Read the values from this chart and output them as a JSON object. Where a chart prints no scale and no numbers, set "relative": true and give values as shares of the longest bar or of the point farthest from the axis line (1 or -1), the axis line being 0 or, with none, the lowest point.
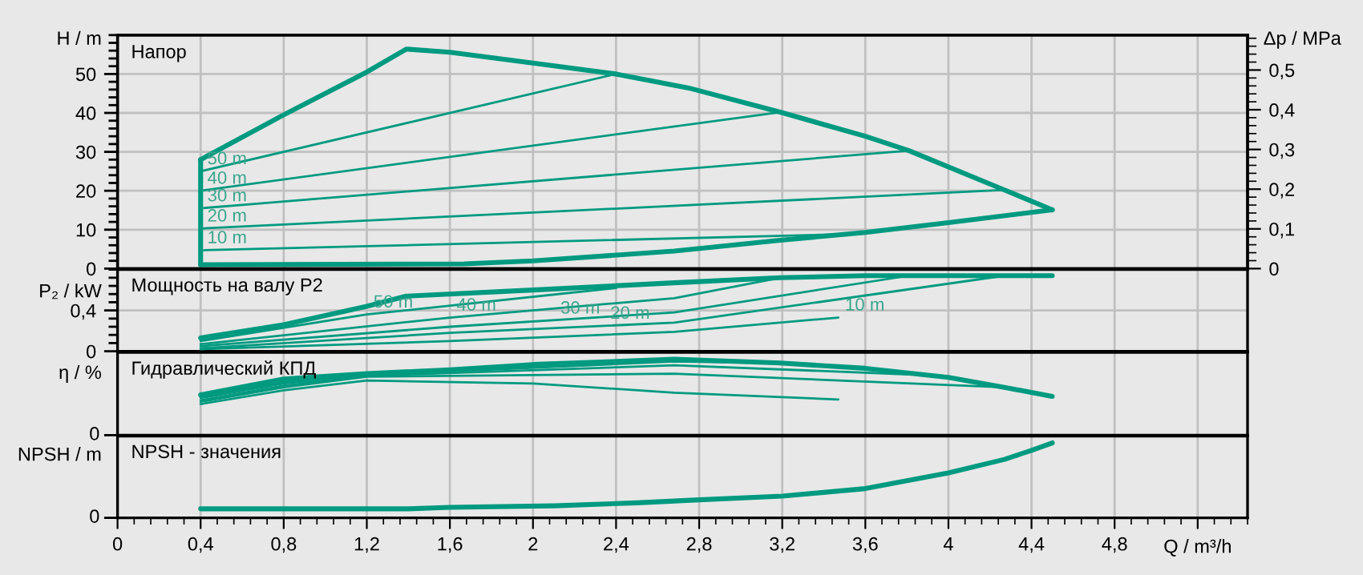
{
  "chart_data": [
    {
      "type": "line",
      "title": "Напор",
      "ylabel": "H / m",
      "y2label": "Δp / MPa",
      "xlim": [
        0,
        5.44
      ],
      "xticks": [
        0,
        0.4,
        0.8,
        1.2,
        1.6,
        2,
        2.4,
        2.8,
        3.2,
        3.6,
        4,
        4.4,
        4.8,
        5.2
      ],
      "ylim": [
        0,
        60
      ],
      "yticks": [
        0,
        10,
        20,
        30,
        40,
        50
      ],
      "y2lim": [
        0,
        0.588
      ],
      "y2ticks": [
        0,
        {
          "value": 0.1,
          "label": "0,1"
        },
        {
          "value": 0.2,
          "label": "0,2"
        },
        {
          "value": 0.3,
          "label": "0,3"
        },
        {
          "value": 0.4,
          "label": "0,4"
        },
        {
          "value": 0.5,
          "label": "0,5"
        }
      ],
      "grid": true,
      "tick_labels": "y",
      "series": [
        {
          "color": "#009a80",
          "x": [
            0.4,
            0.8,
            1.2,
            1.39,
            1.6,
            2.0,
            2.4,
            2.75,
            3.19,
            3.6,
            3.81,
            4.27,
            4.5
          ],
          "values": [
            28,
            39.5,
            50.5,
            56.4,
            55.6,
            52.8,
            50,
            46.4,
            40.2,
            34,
            30.3,
            20.2,
            15.1
          ]
        },
        {
          "color": "#009a80",
          "x": [
            0.4,
            1.67,
            2.0,
            2.68,
            3.19,
            3.6,
            4.0,
            4.5
          ],
          "values": [
            1,
            1.2,
            2,
            4.5,
            7.3,
            9.3,
            11.8,
            15.1
          ]
        },
        {
          "color": "#009a80",
          "x": [
            0.4,
            2.4
          ],
          "values": [
            25,
            50
          ]
        },
        {
          "color": "#009a80",
          "x": [
            0.4,
            3.19
          ],
          "values": [
            20,
            40.2
          ]
        },
        {
          "color": "#009a80",
          "x": [
            0.4,
            3.81
          ],
          "values": [
            15.5,
            30.3
          ]
        },
        {
          "color": "#009a80",
          "x": [
            0.4,
            4.27
          ],
          "values": [
            10.3,
            20.2
          ]
        },
        {
          "color": "#009a80",
          "x": [
            0.4,
            3.47
          ],
          "values": [
            4.7,
            8.8
          ]
        }
      ],
      "annotations": [
        {
          "text": "50 m",
          "x": 0.4,
          "y": 25
        },
        {
          "text": "40 m",
          "x": 0.4,
          "y": 20
        },
        {
          "text": "30 m",
          "x": 0.4,
          "y": 15.5
        },
        {
          "text": "20 m",
          "x": 0.4,
          "y": 10.3
        },
        {
          "text": "10 m",
          "x": 0.4,
          "y": 4.7
        }
      ]
    },
    {
      "type": "line",
      "title": "Мощность на валу P2",
      "ylabel": "P₂ / kW",
      "xlim": [
        0,
        5.44
      ],
      "xticks": [
        0,
        0.4,
        0.8,
        1.2,
        1.6,
        2,
        2.4,
        2.8,
        3.2,
        3.6,
        4,
        4.4,
        4.8,
        5.2
      ],
      "ylim": [
        0,
        0.8
      ],
      "yticks": [
        0,
        {
          "value": 0.4,
          "label": "0,4"
        }
      ],
      "grid": true,
      "tick_labels": "y",
      "series": [
        {
          "color": "#009a80",
          "x": [
            0.4,
            0.8,
            1.2,
            1.39,
            2.0,
            2.68,
            3.19,
            3.6,
            4.0,
            4.5
          ],
          "values": [
            0.13,
            0.26,
            0.44,
            0.54,
            0.6,
            0.67,
            0.72,
            0.74,
            0.74,
            0.74
          ]
        },
        {
          "color": "#009a80",
          "x": [
            0.4,
            1.2,
            2.4
          ],
          "values": [
            0.1,
            0.36,
            0.62
          ]
        },
        {
          "color": "#009a80",
          "x": [
            0.4,
            1.6,
            2.68,
            3.19
          ],
          "values": [
            0.07,
            0.33,
            0.52,
            0.72
          ]
        },
        {
          "color": "#009a80",
          "x": [
            0.4,
            1.6,
            2.68,
            3.81
          ],
          "values": [
            0.05,
            0.24,
            0.38,
            0.74
          ]
        },
        {
          "color": "#009a80",
          "x": [
            0.4,
            1.6,
            2.68,
            4.27
          ],
          "values": [
            0.03,
            0.18,
            0.28,
            0.74
          ]
        },
        {
          "color": "#009a80",
          "x": [
            0.4,
            1.6,
            2.68,
            3.47
          ],
          "values": [
            0.02,
            0.1,
            0.19,
            0.33
          ]
        }
      ],
      "annotations": [
        {
          "text": "50 m",
          "x": 1.2,
          "y": 0.36
        },
        {
          "text": "40 m",
          "x": 1.6,
          "y": 0.33
        },
        {
          "text": "30 m",
          "x": 2.1,
          "y": 0.3
        },
        {
          "text": "20 m",
          "x": 2.34,
          "y": 0.25
        },
        {
          "text": "10 m",
          "x": 3.47,
          "y": 0.33
        }
      ]
    },
    {
      "type": "line",
      "title": "Гидравлический КПД",
      "ylabel": "η / %",
      "relative": true,
      "xlim": [
        0,
        5.44
      ],
      "xticks": [
        0,
        0.4,
        0.8,
        1.2,
        1.6,
        2,
        2.4,
        2.8,
        3.2,
        3.6,
        4,
        4.4,
        4.8,
        5.2
      ],
      "grid": "x",
      "tick_labels": "y",
      "annotations": [
        "0"
      ],
      "series": [
        {
          "color": "#009a80",
          "x": [
            0.4,
            0.8,
            1.2,
            1.6,
            2.0,
            2.68,
            3.19,
            3.6,
            4.0,
            4.27,
            4.5
          ],
          "values": [
            0.53,
            0.74,
            0.81,
            0.86,
            0.93,
            1,
            0.95,
            0.88,
            0.76,
            0.63,
            0.51
          ]
        },
        {
          "color": "#009a80",
          "x": [
            0.4,
            0.8,
            1.2,
            2.4
          ],
          "values": [
            0.51,
            0.7,
            0.8,
            0.94
          ]
        },
        {
          "color": "#009a80",
          "x": [
            0.4,
            0.8,
            1.2,
            2.68,
            3.19
          ],
          "values": [
            0.49,
            0.68,
            0.79,
            0.97,
            0.95
          ]
        },
        {
          "color": "#009a80",
          "x": [
            0.4,
            0.8,
            1.2,
            2.68,
            3.81
          ],
          "values": [
            0.46,
            0.65,
            0.78,
            0.92,
            0.8
          ]
        },
        {
          "color": "#009a80",
          "x": [
            0.4,
            0.8,
            1.2,
            2.68,
            4.27
          ],
          "values": [
            0.44,
            0.63,
            0.77,
            0.81,
            0.63
          ]
        },
        {
          "color": "#009a80",
          "x": [
            0.4,
            0.8,
            1.2,
            2.0,
            2.68,
            3.47
          ],
          "values": [
            0.41,
            0.59,
            0.72,
            0.68,
            0.56,
            0.47
          ]
        }
      ]
    },
    {
      "type": "line",
      "title": "NPSH - значения",
      "ylabel": "NPSH / m",
      "xlabel": "Q / m³/h",
      "relative": true,
      "xlim": [
        0,
        5.44
      ],
      "xticks": [
        0,
        {
          "value": 0.4,
          "label": "0,4"
        },
        {
          "value": 0.8,
          "label": "0,8"
        },
        {
          "value": 1.2,
          "label": "1,2"
        },
        {
          "value": 1.6,
          "label": "1,6"
        },
        2,
        {
          "value": 2.4,
          "label": "2,4"
        },
        {
          "value": 2.8,
          "label": "2,8"
        },
        {
          "value": 3.2,
          "label": "3,2"
        },
        {
          "value": 3.6,
          "label": "3,6"
        },
        4,
        {
          "value": 4.4,
          "label": "4,4"
        },
        {
          "value": 4.8,
          "label": "4,8"
        },
        {
          "value": 5.2,
          "label": null
        }
      ],
      "grid": "x",
      "annotations": [
        "0"
      ],
      "series": [
        {
          "color": "#009a80",
          "x": [
            0.4,
            1.4,
            1.6,
            2.1,
            2.5,
            2.8,
            3.2,
            3.6,
            4.0,
            4.27,
            4.4,
            4.5
          ],
          "values": [
            0.12,
            0.12,
            0.14,
            0.16,
            0.2,
            0.24,
            0.29,
            0.39,
            0.6,
            0.78,
            0.9,
            1
          ]
        }
      ]
    }
  ]
}
